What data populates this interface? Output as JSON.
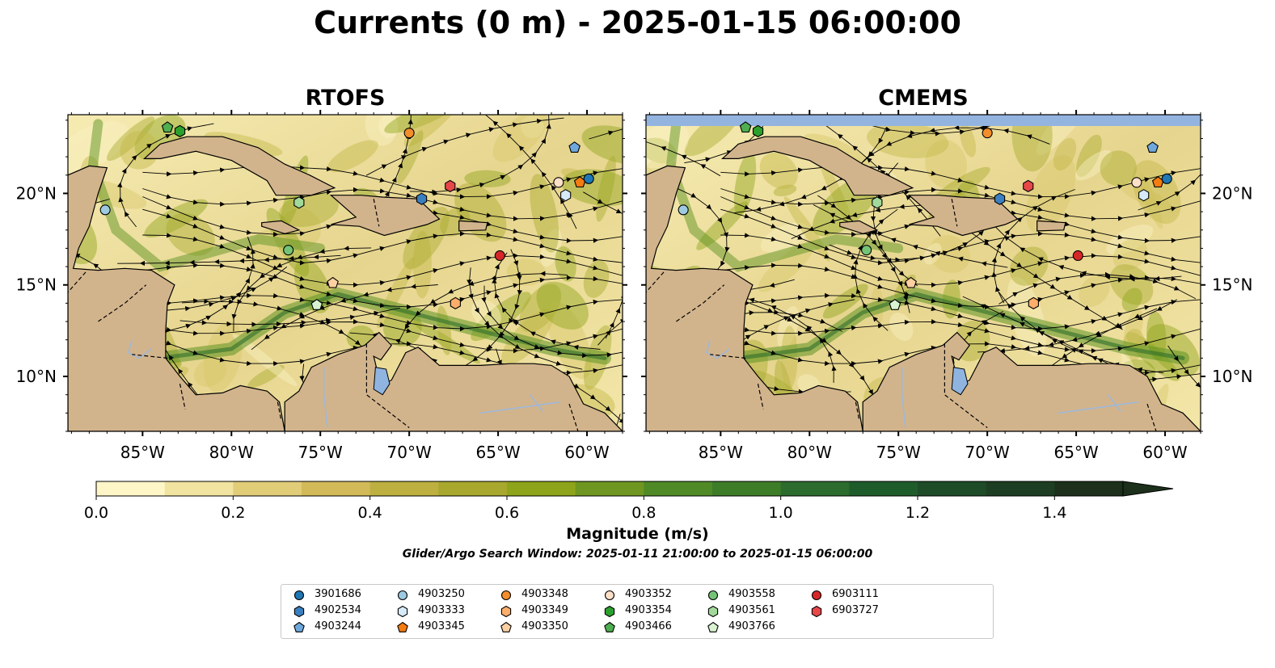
{
  "title": "Currents (0 m) - 2025-01-15 06:00:00",
  "panels": [
    {
      "title": "RTOFS"
    },
    {
      "title": "CMEMS"
    }
  ],
  "lon_ticks": [
    "85°W",
    "80°W",
    "75°W",
    "70°W",
    "65°W",
    "60°W"
  ],
  "lat_ticks": [
    "20°N",
    "15°N",
    "10°N"
  ],
  "colorbar": {
    "label": "Magnitude (m/s)",
    "ticks": [
      "0.0",
      "0.2",
      "0.4",
      "0.6",
      "0.8",
      "1.0",
      "1.2",
      "1.4"
    ],
    "colors": [
      "#fff6c8",
      "#f1e3a0",
      "#e1cc78",
      "#d2ba58",
      "#bdb040",
      "#a8a82e",
      "#8ea41a",
      "#6f9620",
      "#508a26",
      "#3d7d28",
      "#2c6c2e",
      "#1f5c2c",
      "#1e4c28",
      "#1d3e22",
      "#1c301c"
    ]
  },
  "search_window": "Glider/Argo Search Window: 2025-01-11 21:00:00 to 2025-01-15 06:00:00",
  "legend": [
    {
      "id": "3901686",
      "marker": "circle",
      "color": "#1f77b4"
    },
    {
      "id": "4902534",
      "marker": "hexagon",
      "color": "#3a7fc0"
    },
    {
      "id": "4903244",
      "marker": "pentagon",
      "color": "#6fa8dc"
    },
    {
      "id": "4903250",
      "marker": "circle",
      "color": "#9ecae1"
    },
    {
      "id": "4903333",
      "marker": "hexagon",
      "color": "#d6eaf8"
    },
    {
      "id": "4903345",
      "marker": "pentagon",
      "color": "#f47c10"
    },
    {
      "id": "4903348",
      "marker": "circle",
      "color": "#f28e2b"
    },
    {
      "id": "4903349",
      "marker": "hexagon",
      "color": "#fdae6b"
    },
    {
      "id": "4903350",
      "marker": "pentagon",
      "color": "#fdd0a2"
    },
    {
      "id": "4903352",
      "marker": "circle",
      "color": "#fde0c8"
    },
    {
      "id": "4903354",
      "marker": "hexagon",
      "color": "#2ca02c"
    },
    {
      "id": "4903466",
      "marker": "pentagon",
      "color": "#4fae4f"
    },
    {
      "id": "4903558",
      "marker": "circle",
      "color": "#74c476"
    },
    {
      "id": "4903561",
      "marker": "hexagon",
      "color": "#a1d99b"
    },
    {
      "id": "4903766",
      "marker": "pentagon",
      "color": "#d9f2d0"
    },
    {
      "id": "6903111",
      "marker": "circle",
      "color": "#d62728"
    },
    {
      "id": "6903727",
      "marker": "hexagon",
      "color": "#e8474a"
    }
  ],
  "floats": [
    {
      "id": "4903466",
      "marker": "pentagon",
      "color": "#4fae4f",
      "lon": -83.6,
      "lat": 23.6
    },
    {
      "id": "4903354",
      "marker": "hexagon",
      "color": "#2ca02c",
      "lon": -82.9,
      "lat": 23.4
    },
    {
      "id": "4903250",
      "marker": "circle",
      "color": "#9ecae1",
      "lon": -87.1,
      "lat": 19.1
    },
    {
      "id": "4903561",
      "marker": "hexagon",
      "color": "#a1d99b",
      "lon": -76.2,
      "lat": 19.5
    },
    {
      "id": "4903558",
      "marker": "circle",
      "color": "#74c476",
      "lon": -76.8,
      "lat": 16.9
    },
    {
      "id": "4903350",
      "marker": "pentagon",
      "color": "#fdd0a2",
      "lon": -74.3,
      "lat": 15.1
    },
    {
      "id": "4903766",
      "marker": "pentagon",
      "color": "#d9f2d0",
      "lon": -75.2,
      "lat": 13.9
    },
    {
      "id": "4902534",
      "marker": "hexagon",
      "color": "#3a7fc0",
      "lon": -69.3,
      "lat": 19.7
    },
    {
      "id": "4903348",
      "marker": "circle",
      "color": "#f28e2b",
      "lon": -70.0,
      "lat": 23.3
    },
    {
      "id": "6903727",
      "marker": "hexagon",
      "color": "#e8474a",
      "lon": -67.7,
      "lat": 20.4
    },
    {
      "id": "6903111",
      "marker": "circle",
      "color": "#d62728",
      "lon": -64.9,
      "lat": 16.6
    },
    {
      "id": "4903349",
      "marker": "hexagon",
      "color": "#fdae6b",
      "lon": -67.4,
      "lat": 14.0
    },
    {
      "id": "4903244",
      "marker": "pentagon",
      "color": "#6fa8dc",
      "lon": -60.7,
      "lat": 22.5
    },
    {
      "id": "4903352",
      "marker": "circle",
      "color": "#fde0c8",
      "lon": -61.6,
      "lat": 20.6
    },
    {
      "id": "4903345",
      "marker": "pentagon",
      "color": "#f47c10",
      "lon": -60.4,
      "lat": 20.6
    },
    {
      "id": "3901686",
      "marker": "circle",
      "color": "#1f77b4",
      "lon": -59.9,
      "lat": 20.8
    },
    {
      "id": "4903333",
      "marker": "hexagon",
      "color": "#d6eaf8",
      "lon": -61.2,
      "lat": 19.9
    }
  ]
}
